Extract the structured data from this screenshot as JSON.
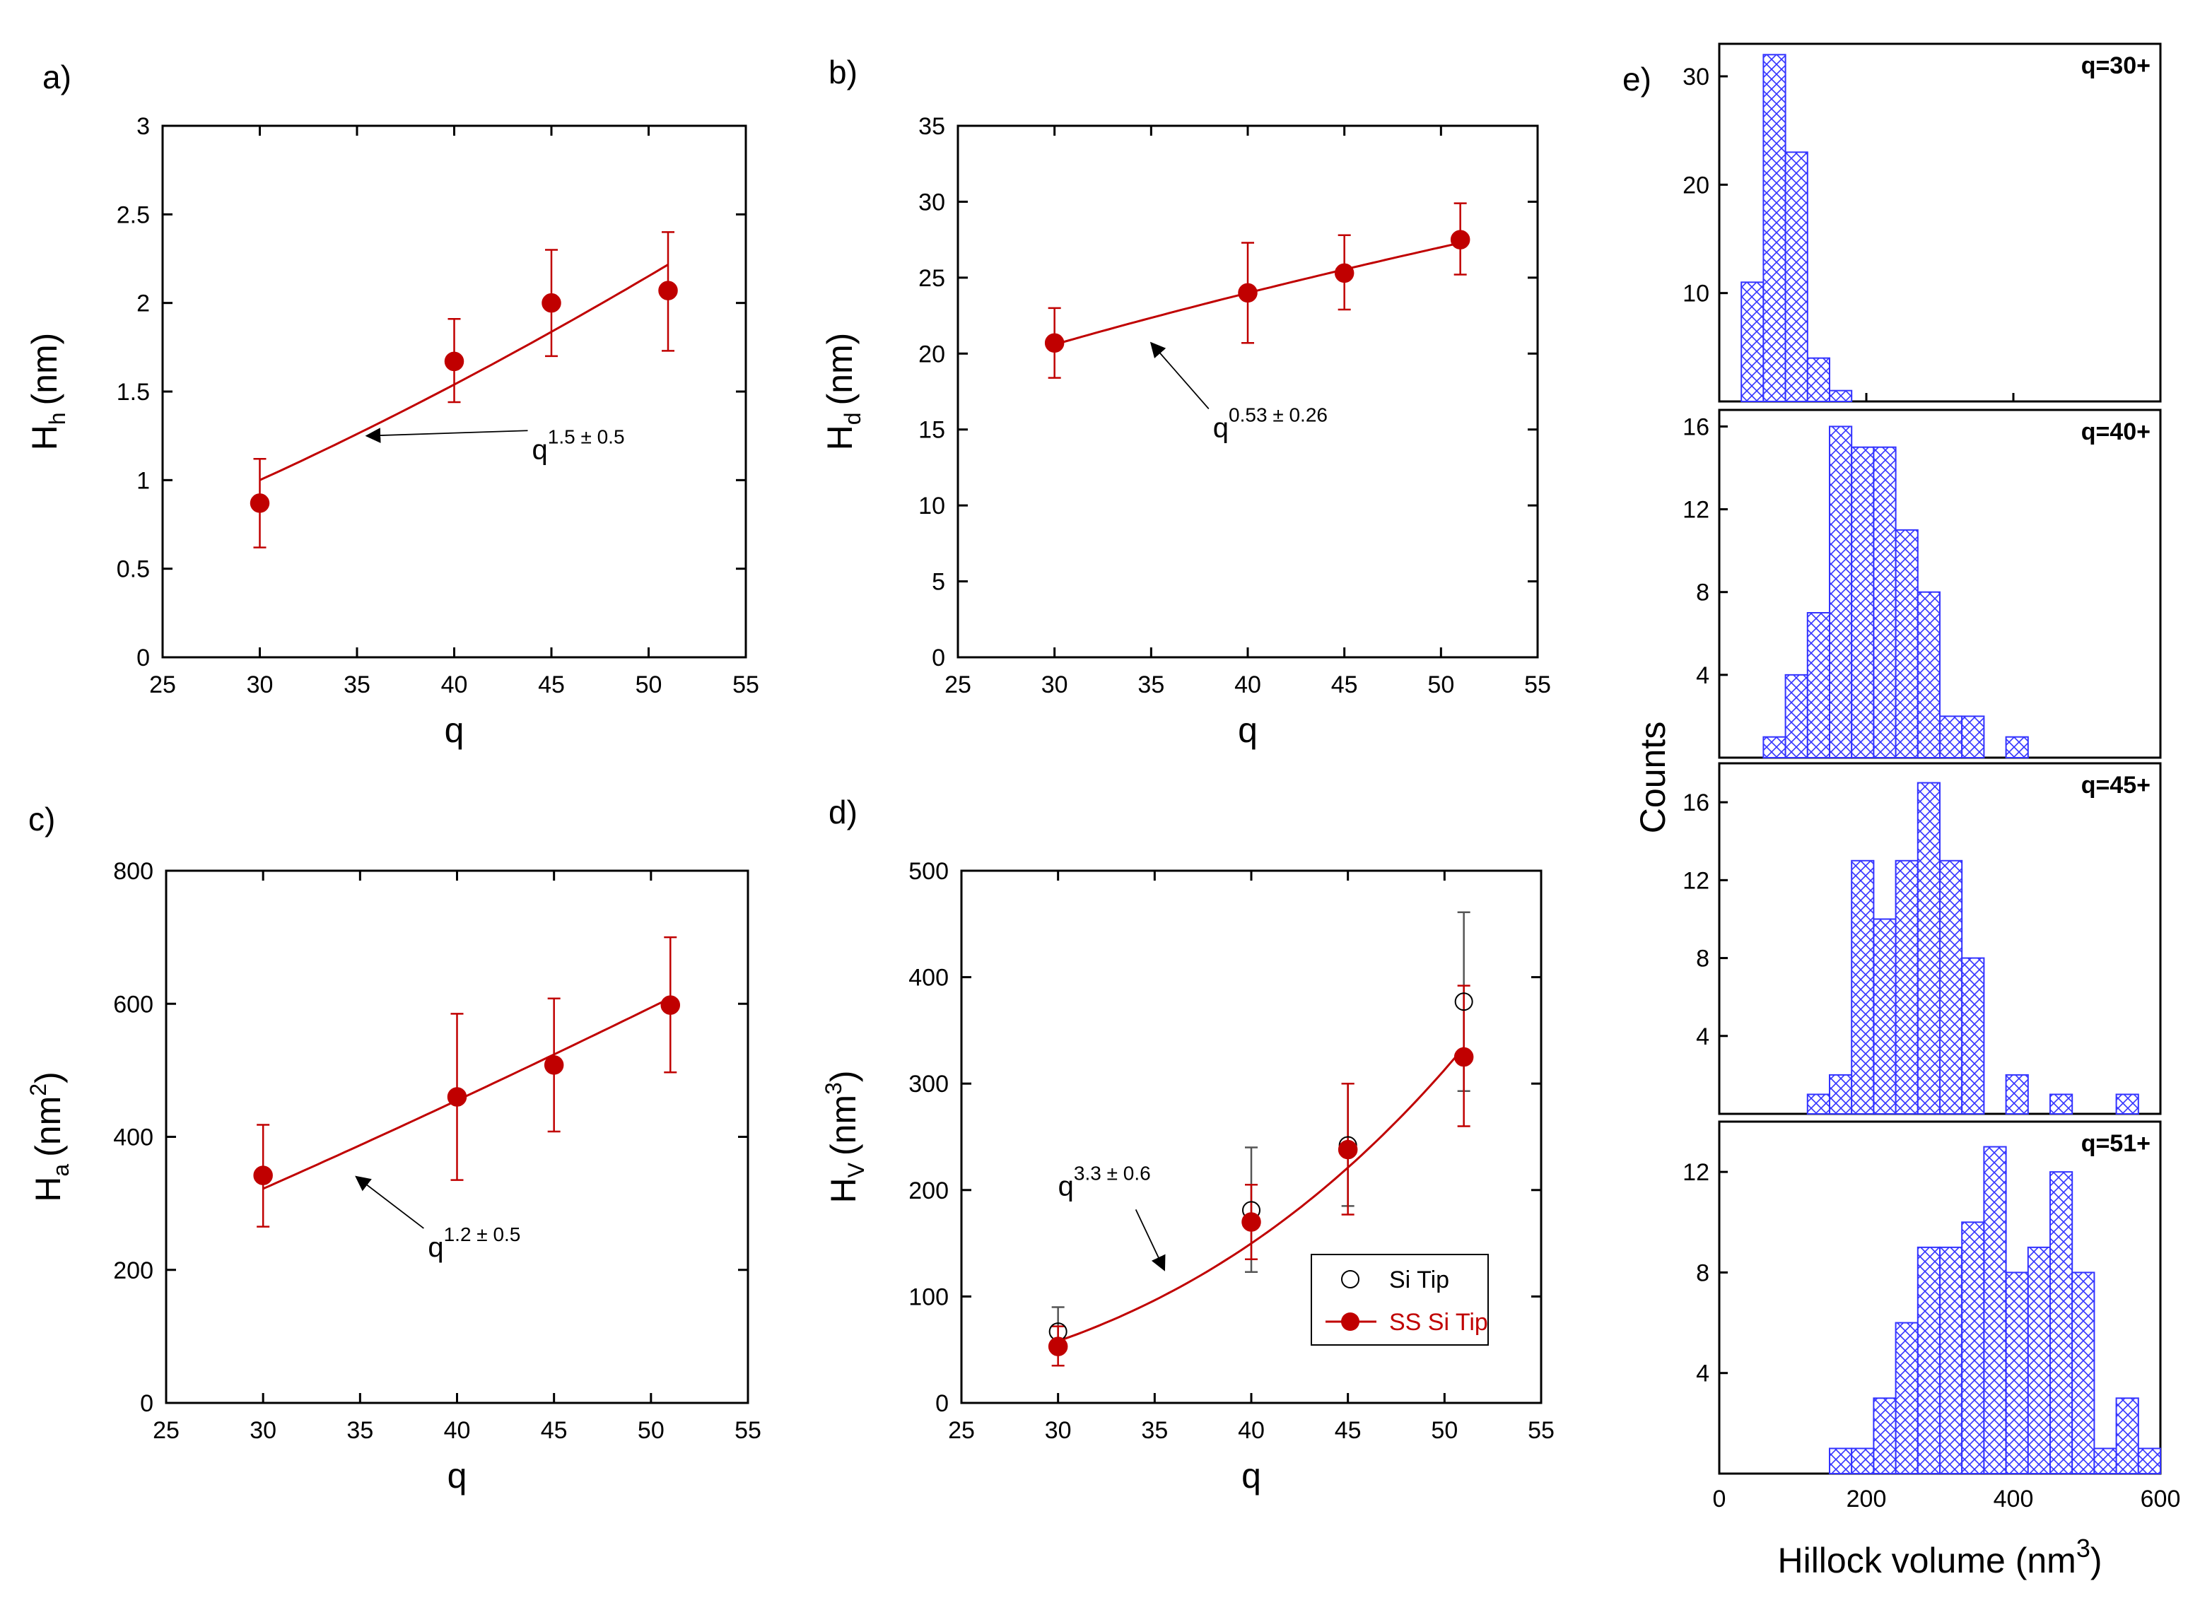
{
  "colors": {
    "accent": "#c00000",
    "hist_fill": "#3333ff",
    "axis": "#000000"
  },
  "chart_data": [
    {
      "id": "a",
      "type": "scatter",
      "panel_label": "a)",
      "xlabel": "q",
      "ylabel_main": "H",
      "ylabel_sub": "h",
      "ylabel_unit": "(nm)",
      "xlim": [
        25,
        55
      ],
      "ylim": [
        0,
        3
      ],
      "xticks": [
        25,
        30,
        35,
        40,
        45,
        50,
        55
      ],
      "yticks": [
        0,
        0.5,
        1,
        1.5,
        2,
        2.5,
        3
      ],
      "yticklabels": [
        "0",
        "0.5",
        "1",
        "1.5",
        "2",
        "2.5",
        "3"
      ],
      "series": [
        {
          "name": "data",
          "x": [
            30,
            40,
            45,
            51
          ],
          "y": [
            0.87,
            1.67,
            2.0,
            2.07
          ],
          "err_low": [
            0.62,
            1.44,
            1.7,
            1.73
          ],
          "err_high": [
            1.12,
            1.91,
            2.3,
            2.4
          ],
          "filled": true
        }
      ],
      "fit": {
        "a": 1.0,
        "b": 1.5,
        "x0": 30,
        "x1": 51
      },
      "annotation": {
        "base": "q",
        "exponent": "1.5 ± 0.5",
        "text_x": 44,
        "text_y": 1.12,
        "arrow_to_x": 35.5,
        "arrow_to_y": 1.25
      }
    },
    {
      "id": "b",
      "type": "scatter",
      "panel_label": "b)",
      "xlabel": "q",
      "ylabel_main": "H",
      "ylabel_sub": "d",
      "ylabel_unit": "(nm)",
      "xlim": [
        25,
        55
      ],
      "ylim": [
        0,
        35
      ],
      "xticks": [
        25,
        30,
        35,
        40,
        45,
        50,
        55
      ],
      "yticks": [
        0,
        5,
        10,
        15,
        20,
        25,
        30,
        35
      ],
      "yticklabels": [
        "0",
        "5",
        "10",
        "15",
        "20",
        "25",
        "30",
        "35"
      ],
      "series": [
        {
          "name": "data",
          "x": [
            30,
            40,
            45,
            51
          ],
          "y": [
            20.7,
            24.0,
            25.3,
            27.5
          ],
          "err_low": [
            18.4,
            20.7,
            22.9,
            25.2
          ],
          "err_high": [
            23.0,
            27.3,
            27.8,
            29.9
          ],
          "filled": true
        }
      ],
      "fit": {
        "a": 20.6,
        "b": 0.53,
        "x0": 30,
        "x1": 51
      },
      "annotation": {
        "base": "q",
        "exponent": "0.53 ± 0.26",
        "text_x": 38.2,
        "text_y": 14.5,
        "arrow_to_x": 35,
        "arrow_to_y": 20.7
      }
    },
    {
      "id": "c",
      "type": "scatter",
      "panel_label": "c)",
      "xlabel": "q",
      "ylabel_main": "H",
      "ylabel_sub": "a",
      "ylabel_unit_pre": "(nm",
      "ylabel_unit_sup": "2",
      "ylabel_unit_post": ")",
      "xlim": [
        25,
        55
      ],
      "ylim": [
        0,
        800
      ],
      "xticks": [
        25,
        30,
        35,
        40,
        45,
        50,
        55
      ],
      "yticks": [
        0,
        200,
        400,
        600,
        800
      ],
      "yticklabels": [
        "0",
        "200",
        "400",
        "600",
        "800"
      ],
      "series": [
        {
          "name": "data",
          "x": [
            30,
            40,
            45,
            51
          ],
          "y": [
            342,
            460,
            508,
            598
          ],
          "err_low": [
            265,
            335,
            408,
            497
          ],
          "err_high": [
            418,
            585,
            608,
            700
          ],
          "filled": true
        }
      ],
      "fit": {
        "a": 322,
        "b": 1.2,
        "x0": 30,
        "x1": 51
      },
      "annotation": {
        "base": "q",
        "exponent": "1.2 ± 0.5",
        "text_x": 38.5,
        "text_y": 220,
        "arrow_to_x": 34.8,
        "arrow_to_y": 340
      }
    },
    {
      "id": "d",
      "type": "scatter",
      "panel_label": "d)",
      "xlabel": "q",
      "ylabel_main": "H",
      "ylabel_sub": "V",
      "ylabel_unit_pre": "(nm",
      "ylabel_unit_sup": "3",
      "ylabel_unit_post": ")",
      "xlim": [
        25,
        55
      ],
      "ylim": [
        0,
        500
      ],
      "xticks": [
        25,
        30,
        35,
        40,
        45,
        50,
        55
      ],
      "yticks": [
        0,
        100,
        200,
        300,
        400,
        500
      ],
      "yticklabels": [
        "0",
        "100",
        "200",
        "300",
        "400",
        "500"
      ],
      "series": [
        {
          "name": "Si Tip",
          "x": [
            30,
            40,
            45,
            51
          ],
          "y": [
            67,
            181,
            242,
            377
          ],
          "err_low": [
            52,
            123,
            185,
            293
          ],
          "err_high": [
            90,
            240,
            300,
            461
          ],
          "filled": false
        },
        {
          "name": "SS Si Tip",
          "x": [
            30,
            40,
            45,
            51
          ],
          "y": [
            53,
            170,
            238,
            325
          ],
          "err_low": [
            35,
            135,
            177,
            260
          ],
          "err_high": [
            72,
            205,
            300,
            392
          ],
          "filled": true
        }
      ],
      "fit": {
        "a": 58,
        "b": 3.3,
        "x0": 30,
        "x1": 51
      },
      "legend": {
        "placement": "bottom-right",
        "entries": [
          "Si Tip",
          "SS Si Tip"
        ]
      },
      "annotation": {
        "base": "q",
        "exponent": "3.3 ± 0.6",
        "text_x": 30,
        "text_y": 195,
        "arrow_to_x": 35.5,
        "arrow_to_y": 125
      }
    },
    {
      "id": "e",
      "type": "bar",
      "subtype": "histogram",
      "panel_label": "e)",
      "xlabel_pre": "Hillock volume (nm",
      "xlabel_sup": "3",
      "xlabel_post": ")",
      "ylabel": "Counts",
      "xlim": [
        0,
        600
      ],
      "xticks": [
        0,
        200,
        400,
        600
      ],
      "bin_width": 30,
      "subplots": [
        {
          "label": "q=30+",
          "ylim": [
            0,
            33
          ],
          "yticks": [
            10,
            20,
            30
          ],
          "bins": [
            {
              "x": 30,
              "count": 11
            },
            {
              "x": 60,
              "count": 32
            },
            {
              "x": 90,
              "count": 23
            },
            {
              "x": 120,
              "count": 4
            },
            {
              "x": 150,
              "count": 1
            }
          ]
        },
        {
          "label": "q=40+",
          "ylim": [
            0,
            16.8
          ],
          "yticks": [
            4,
            8,
            12,
            16
          ],
          "bins": [
            {
              "x": 60,
              "count": 1
            },
            {
              "x": 90,
              "count": 4
            },
            {
              "x": 120,
              "count": 7
            },
            {
              "x": 150,
              "count": 16
            },
            {
              "x": 180,
              "count": 15
            },
            {
              "x": 210,
              "count": 15
            },
            {
              "x": 240,
              "count": 11
            },
            {
              "x": 270,
              "count": 8
            },
            {
              "x": 300,
              "count": 2
            },
            {
              "x": 330,
              "count": 2
            },
            {
              "x": 390,
              "count": 1
            }
          ]
        },
        {
          "label": "q=45+",
          "ylim": [
            0,
            18
          ],
          "yticks": [
            4,
            8,
            12,
            16
          ],
          "bins": [
            {
              "x": 120,
              "count": 1
            },
            {
              "x": 150,
              "count": 2
            },
            {
              "x": 180,
              "count": 13
            },
            {
              "x": 210,
              "count": 10
            },
            {
              "x": 240,
              "count": 13
            },
            {
              "x": 270,
              "count": 17
            },
            {
              "x": 300,
              "count": 13
            },
            {
              "x": 330,
              "count": 8
            },
            {
              "x": 390,
              "count": 2
            },
            {
              "x": 450,
              "count": 1
            },
            {
              "x": 540,
              "count": 1
            }
          ]
        },
        {
          "label": "q=51+",
          "ylim": [
            0,
            14
          ],
          "yticks": [
            4,
            8,
            12
          ],
          "bins": [
            {
              "x": 150,
              "count": 1
            },
            {
              "x": 180,
              "count": 1
            },
            {
              "x": 210,
              "count": 3
            },
            {
              "x": 240,
              "count": 6
            },
            {
              "x": 270,
              "count": 9
            },
            {
              "x": 300,
              "count": 9
            },
            {
              "x": 330,
              "count": 10
            },
            {
              "x": 360,
              "count": 13
            },
            {
              "x": 390,
              "count": 8
            },
            {
              "x": 420,
              "count": 9
            },
            {
              "x": 450,
              "count": 12
            },
            {
              "x": 480,
              "count": 8
            },
            {
              "x": 510,
              "count": 1
            },
            {
              "x": 540,
              "count": 3
            },
            {
              "x": 570,
              "count": 1
            }
          ]
        }
      ]
    }
  ]
}
